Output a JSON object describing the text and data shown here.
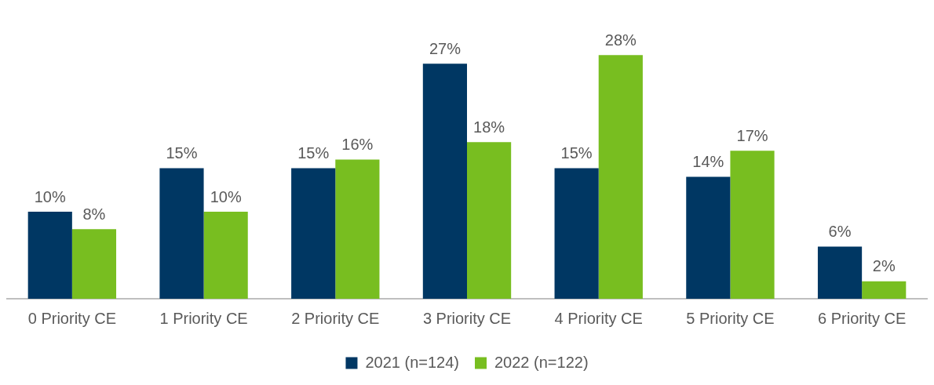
{
  "chart_data": {
    "type": "bar",
    "categories": [
      "0 Priority CE",
      "1 Priority CE",
      "2 Priority CE",
      "3 Priority CE",
      "4 Priority CE",
      "5 Priority CE",
      "6 Priority CE"
    ],
    "series": [
      {
        "name": "2021 (n=124)",
        "color": "#003763",
        "values": [
          10,
          15,
          15,
          27,
          15,
          14,
          6
        ],
        "value_labels": [
          "10%",
          "15%",
          "15%",
          "27%",
          "15%",
          "14%",
          "6%"
        ]
      },
      {
        "name": "2022 (n=122)",
        "color": "#78be20",
        "values": [
          8,
          10,
          16,
          18,
          28,
          17,
          2
        ],
        "value_labels": [
          "8%",
          "10%",
          "16%",
          "18%",
          "28%",
          "17%",
          "2%"
        ]
      }
    ],
    "legend": "bottom",
    "grid": false
  }
}
